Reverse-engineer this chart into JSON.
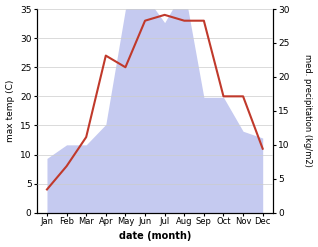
{
  "months": [
    "Jan",
    "Feb",
    "Mar",
    "Apr",
    "May",
    "Jun",
    "Jul",
    "Aug",
    "Sep",
    "Oct",
    "Nov",
    "Dec"
  ],
  "temperature": [
    4,
    8,
    13,
    27,
    25,
    33,
    34,
    33,
    33,
    20,
    20,
    11
  ],
  "precipitation": [
    8,
    10,
    10,
    13,
    30,
    32,
    28,
    33,
    17,
    17,
    12,
    11
  ],
  "temp_color": "#c0392b",
  "precip_fill_color": "#c5caf0",
  "ylim_temp": [
    0,
    35
  ],
  "ylim_precip": [
    0,
    30
  ],
  "xlabel": "date (month)",
  "ylabel_left": "max temp (C)",
  "ylabel_right": "med. precipitation (kg/m2)",
  "yticks_temp": [
    0,
    5,
    10,
    15,
    20,
    25,
    30,
    35
  ],
  "yticks_precip": [
    0,
    5,
    10,
    15,
    20,
    25,
    30
  ],
  "grid_color": "#cccccc"
}
